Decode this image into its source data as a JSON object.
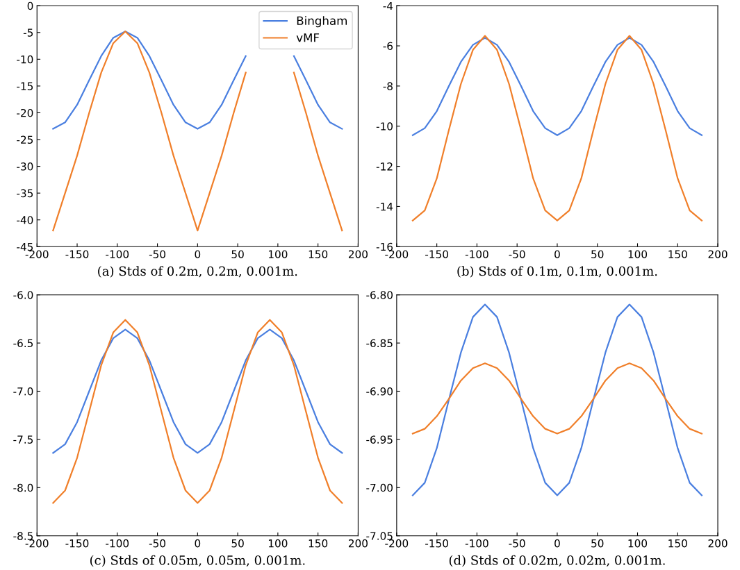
{
  "chart_data": [
    {
      "type": "line",
      "xlabel": "(a) Stds of 0.2m, 0.2m, 0.001m.",
      "x": [
        -180,
        -165,
        -150,
        -135,
        -120,
        -105,
        -90,
        -75,
        -60,
        -45,
        -30,
        -15,
        0,
        15,
        30,
        45,
        60,
        75,
        90,
        105,
        120,
        135,
        150,
        165,
        180
      ],
      "xlim": [
        -200,
        200
      ],
      "xticks": [
        -200,
        -150,
        -100,
        -50,
        0,
        50,
        100,
        150,
        200
      ],
      "ylim": [
        -45,
        0
      ],
      "yticks": [
        -45,
        -40,
        -35,
        -30,
        -25,
        -20,
        -15,
        -10,
        -5,
        0
      ],
      "legend": "top right",
      "series": [
        {
          "name": "Bingham",
          "color": "#4a7fe0",
          "values": [
            -23,
            -21.8,
            -18.5,
            -13.9,
            -9.4,
            -6.0,
            -4.8,
            -6.0,
            -9.4,
            -13.9,
            -18.5,
            -21.8,
            -23,
            -21.8,
            -18.5,
            -13.9,
            -9.4,
            null,
            null,
            null,
            -9.4,
            -13.9,
            -18.5,
            -21.8,
            -23
          ]
        },
        {
          "name": "vMF",
          "color": "#f07f2a",
          "values": [
            -42,
            -35,
            -28,
            -20,
            -12.5,
            -7,
            -4.8,
            -7,
            -12.5,
            -20,
            -28,
            -35,
            -42,
            -35,
            -28,
            -20,
            -12.5,
            null,
            null,
            null,
            -12.5,
            -20,
            -28,
            -35,
            -42
          ]
        }
      ]
    },
    {
      "type": "line",
      "xlabel": "(b) Stds of 0.1m, 0.1m, 0.001m.",
      "x": [
        -180,
        -165,
        -150,
        -135,
        -120,
        -105,
        -90,
        -75,
        -60,
        -45,
        -30,
        -15,
        0,
        15,
        30,
        45,
        60,
        75,
        90,
        105,
        120,
        135,
        150,
        165,
        180
      ],
      "xlim": [
        -200,
        200
      ],
      "xticks": [
        -200,
        -150,
        -100,
        -50,
        0,
        50,
        100,
        150,
        200
      ],
      "ylim": [
        -16,
        -4
      ],
      "yticks": [
        -16,
        -14,
        -12,
        -10,
        -8,
        -6,
        -4
      ],
      "series": [
        {
          "color": "#4a7fe0",
          "values": [
            -10.45,
            -10.1,
            -9.25,
            -8.0,
            -6.8,
            -5.95,
            -5.6,
            -5.95,
            -6.8,
            -8.0,
            -9.25,
            -10.1,
            -10.45,
            -10.1,
            -9.25,
            -8.0,
            -6.8,
            -5.95,
            -5.6,
            -5.95,
            -6.8,
            -8.0,
            -9.25,
            -10.1,
            -10.45
          ]
        },
        {
          "color": "#f07f2a",
          "values": [
            -14.7,
            -14.2,
            -12.6,
            -10.2,
            -7.9,
            -6.2,
            -5.5,
            -6.2,
            -7.9,
            -10.2,
            -12.6,
            -14.2,
            -14.7,
            -14.2,
            -12.6,
            -10.2,
            -7.9,
            -6.2,
            -5.5,
            -6.2,
            -7.9,
            -10.2,
            -12.6,
            -14.2,
            -14.7
          ]
        }
      ]
    },
    {
      "type": "line",
      "xlabel": "(c) Stds of 0.05m, 0.05m, 0.001m.",
      "x": [
        -180,
        -165,
        -150,
        -135,
        -120,
        -105,
        -90,
        -75,
        -60,
        -45,
        -30,
        -15,
        0,
        15,
        30,
        45,
        60,
        75,
        90,
        105,
        120,
        135,
        150,
        165,
        180
      ],
      "xlim": [
        -200,
        200
      ],
      "xticks": [
        -200,
        -150,
        -100,
        -50,
        0,
        50,
        100,
        150,
        200
      ],
      "ylim": [
        -8.5,
        -6.0
      ],
      "yticks": [
        {
          "value": -8.5,
          "label": "-8.5"
        },
        {
          "value": -8.0,
          "label": "-8.0"
        },
        {
          "value": -7.5,
          "label": "-7.5"
        },
        {
          "value": -7.0,
          "label": "-7.0"
        },
        {
          "value": -6.5,
          "label": "-6.5"
        },
        {
          "value": -6.0,
          "label": "-6.0"
        }
      ],
      "series": [
        {
          "color": "#4a7fe0",
          "values": [
            -7.64,
            -7.55,
            -7.32,
            -7.0,
            -6.68,
            -6.45,
            -6.36,
            -6.45,
            -6.68,
            -7.0,
            -7.32,
            -7.55,
            -7.64,
            -7.55,
            -7.32,
            -7.0,
            -6.68,
            -6.45,
            -6.36,
            -6.45,
            -6.68,
            -7.0,
            -7.32,
            -7.55,
            -7.64
          ]
        },
        {
          "color": "#f07f2a",
          "values": [
            -8.16,
            -8.03,
            -7.69,
            -7.21,
            -6.73,
            -6.39,
            -6.26,
            -6.39,
            -6.73,
            -7.21,
            -7.69,
            -8.03,
            -8.16,
            -8.03,
            -7.69,
            -7.21,
            -6.73,
            -6.39,
            -6.26,
            -6.39,
            -6.73,
            -7.21,
            -7.69,
            -8.03,
            -8.16
          ]
        }
      ]
    },
    {
      "type": "line",
      "xlabel": "(d) Stds of 0.02m, 0.02m, 0.001m.",
      "x": [
        -180,
        -165,
        -150,
        -135,
        -120,
        -105,
        -90,
        -75,
        -60,
        -45,
        -30,
        -15,
        0,
        15,
        30,
        45,
        60,
        75,
        90,
        105,
        120,
        135,
        150,
        165,
        180
      ],
      "xlim": [
        -200,
        200
      ],
      "xticks": [
        -200,
        -150,
        -100,
        -50,
        0,
        50,
        100,
        150,
        200
      ],
      "ylim": [
        -7.05,
        -6.8
      ],
      "yticks": [
        {
          "value": -7.05,
          "label": "-7.05"
        },
        {
          "value": -7.0,
          "label": "-7.00"
        },
        {
          "value": -6.95,
          "label": "-6.95"
        },
        {
          "value": -6.9,
          "label": "-6.90"
        },
        {
          "value": -6.85,
          "label": "-6.85"
        },
        {
          "value": -6.8,
          "label": "-6.80"
        }
      ],
      "series": [
        {
          "color": "#4a7fe0",
          "values": [
            -7.008,
            -6.995,
            -6.959,
            -6.909,
            -6.86,
            -6.823,
            -6.81,
            -6.823,
            -6.86,
            -6.909,
            -6.959,
            -6.995,
            -7.008,
            -6.995,
            -6.959,
            -6.909,
            -6.86,
            -6.823,
            -6.81,
            -6.823,
            -6.86,
            -6.909,
            -6.959,
            -6.995,
            -7.008
          ]
        },
        {
          "color": "#f07f2a",
          "values": [
            -6.944,
            -6.939,
            -6.926,
            -6.908,
            -6.889,
            -6.876,
            -6.871,
            -6.876,
            -6.889,
            -6.908,
            -6.926,
            -6.939,
            -6.944,
            -6.939,
            -6.926,
            -6.908,
            -6.889,
            -6.876,
            -6.871,
            -6.876,
            -6.889,
            -6.908,
            -6.926,
            -6.939,
            -6.944
          ]
        }
      ]
    }
  ]
}
